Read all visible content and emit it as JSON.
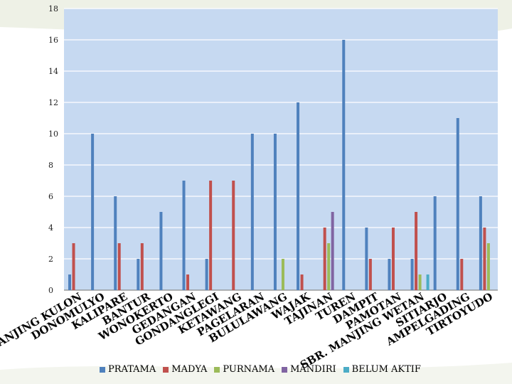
{
  "chart_data": {
    "type": "bar",
    "categories": [
      "SBR. MANJING KULON",
      "DONOMULYO",
      "KALIPARE",
      "BANTUR",
      "WONOKERTO",
      "GEDANGAN",
      "GONDANGLEGI",
      "KETAWANG",
      "PAGELARAN",
      "BULULAWANG",
      "WAJAK",
      "TAJINAN",
      "TUREN",
      "DAMPIT",
      "PAMOTAN",
      "SBR. MANJING WETAN",
      "SITIARJO",
      "AMPELGADING",
      "TIRTOYUDO"
    ],
    "series": [
      {
        "name": "PRATAMA",
        "color": "#4f81bd",
        "values": [
          1,
          10,
          6,
          2,
          5,
          7,
          2,
          0,
          10,
          10,
          12,
          0,
          16,
          4,
          2,
          2,
          6,
          11,
          6
        ]
      },
      {
        "name": "MADYA",
        "color": "#c0504d",
        "values": [
          3,
          0,
          3,
          3,
          0,
          1,
          7,
          7,
          0,
          0,
          1,
          4,
          0,
          2,
          4,
          5,
          0,
          2,
          4
        ]
      },
      {
        "name": "PURNAMA",
        "color": "#9bbb59",
        "values": [
          0,
          0,
          0,
          0,
          0,
          0,
          0,
          0,
          0,
          2,
          0,
          3,
          0,
          0,
          0,
          1,
          0,
          0,
          3
        ]
      },
      {
        "name": "MANDIRI",
        "color": "#8064a2",
        "values": [
          0,
          0,
          0,
          0,
          0,
          0,
          0,
          0,
          0,
          0,
          0,
          5,
          0,
          0,
          0,
          0,
          0,
          0,
          0
        ]
      },
      {
        "name": "BELUM AKTIF",
        "color": "#4bacc6",
        "values": [
          0,
          0,
          0,
          0,
          0,
          0,
          0,
          0,
          0,
          0,
          0,
          0,
          0,
          0,
          0,
          1,
          0,
          0,
          0
        ]
      }
    ],
    "yticks": [
      0,
      2,
      4,
      6,
      8,
      10,
      12,
      14,
      16,
      18
    ],
    "ylim": [
      0,
      18
    ],
    "grid": true,
    "legend": "bottom",
    "title": "",
    "xlabel": "",
    "ylabel": "",
    "plot_bg": "#c6d9f1"
  }
}
